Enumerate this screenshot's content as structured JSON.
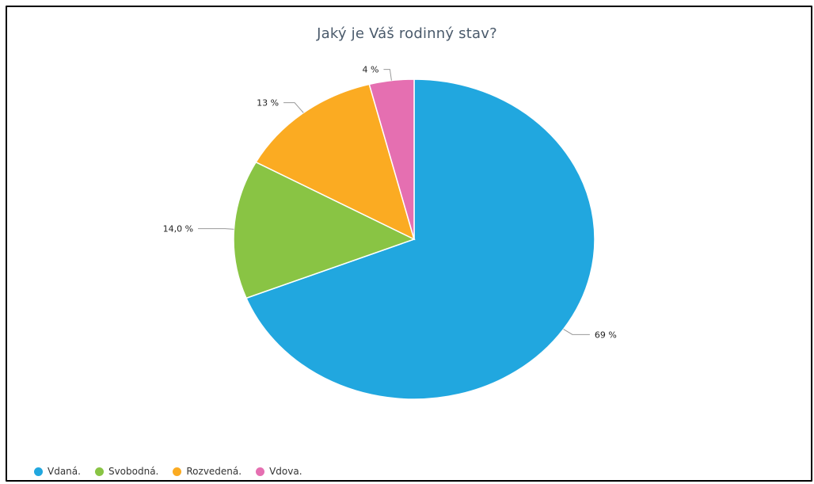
{
  "chart_data": {
    "type": "pie",
    "title": "Jaký je Váš rodinný stav?",
    "start_angle_deg": 0,
    "direction": "clockwise",
    "legend_position": "bottom-left",
    "slices": [
      {
        "label": "Vdaná.",
        "value": 69,
        "display": "69 %",
        "color": "#21a7df"
      },
      {
        "label": "Svobodná.",
        "value": 14,
        "display": "14,0 %",
        "color": "#89c444"
      },
      {
        "label": "Rozvedená.",
        "value": 13,
        "display": "13 %",
        "color": "#fbab22"
      },
      {
        "label": "Vdova.",
        "value": 4,
        "display": "4 %",
        "color": "#e56fb1"
      }
    ]
  }
}
